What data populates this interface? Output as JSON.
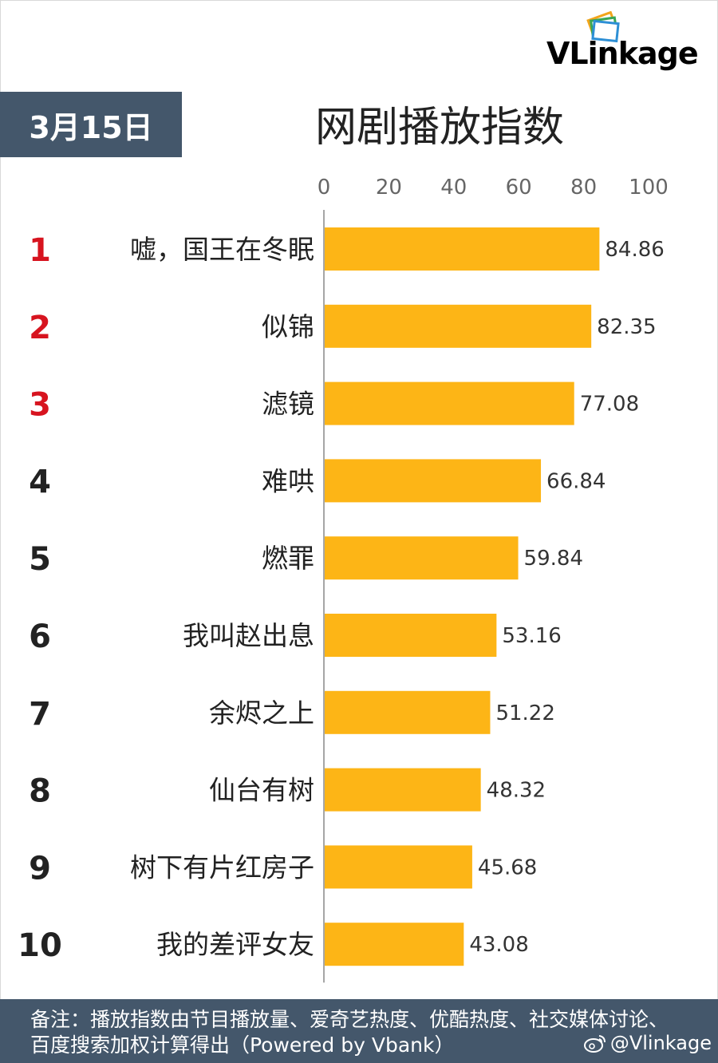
{
  "header": {
    "date": "3月15日",
    "title": "网剧播放指数",
    "logo_text": "VLinkage"
  },
  "chart_data": {
    "type": "bar",
    "orientation": "horizontal",
    "title": "网剧播放指数",
    "xlim": [
      0,
      100
    ],
    "x_ticks": [
      "0",
      "20",
      "40",
      "60",
      "80",
      "100"
    ],
    "x_tick_values": [
      0,
      20,
      40,
      60,
      80,
      100
    ],
    "ranks": [
      "1",
      "2",
      "3",
      "4",
      "5",
      "6",
      "7",
      "8",
      "9",
      "10"
    ],
    "categories": [
      "嘘，国王在冬眠",
      "似锦",
      "滤镜",
      "难哄",
      "燃罪",
      "我叫赵出息",
      "余烬之上",
      "仙台有树",
      "树下有片红房子",
      "我的差评女友"
    ],
    "values": [
      84.86,
      82.35,
      77.08,
      66.84,
      59.84,
      53.16,
      51.22,
      48.32,
      45.68,
      43.08
    ],
    "value_labels": [
      "84.86",
      "82.35",
      "77.08",
      "66.84",
      "59.84",
      "53.16",
      "51.22",
      "48.32",
      "45.68",
      "43.08"
    ],
    "bar_color": "#fdb516",
    "top_rank_color": "#d7141f",
    "rank_color": "#222222"
  },
  "footer": {
    "note": "备注：播放指数由节目播放量、爱奇艺热度、优酷热度、社交媒体讨论、百度搜索加权计算得出（Powered by Vbank）",
    "handle": "@Vlinkage",
    "handle_icon": "weibo-icon"
  }
}
